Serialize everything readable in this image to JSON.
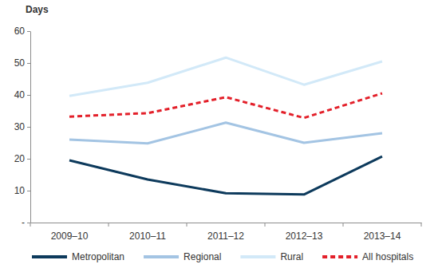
{
  "chart_data": {
    "type": "line",
    "y_label": "Days",
    "categories": [
      "2009–10",
      "2010–11",
      "2011–12",
      "2012–13",
      "2013–14"
    ],
    "series": [
      {
        "name": "Metropolitan",
        "color": "#0d3a5c",
        "line_style": "solid",
        "values": [
          19.5,
          13.5,
          9.2,
          8.8,
          20.7
        ]
      },
      {
        "name": "Regional",
        "color": "#a3c4e3",
        "line_style": "solid",
        "values": [
          26,
          24.8,
          31.3,
          25,
          28
        ]
      },
      {
        "name": "Rural",
        "color": "#d2e9f8",
        "line_style": "solid",
        "values": [
          39.7,
          43.8,
          51.7,
          43.2,
          50.5
        ]
      },
      {
        "name": "All hospitals",
        "color": "#e3202a",
        "line_style": "dashed",
        "values": [
          33.2,
          34.3,
          39.3,
          32.8,
          40.5
        ]
      }
    ],
    "ylim": [
      0,
      60
    ],
    "yticks": [
      {
        "value": 0,
        "label": "-"
      },
      10,
      20,
      30,
      40,
      50,
      60
    ],
    "grid": false,
    "legend": "bottom"
  }
}
